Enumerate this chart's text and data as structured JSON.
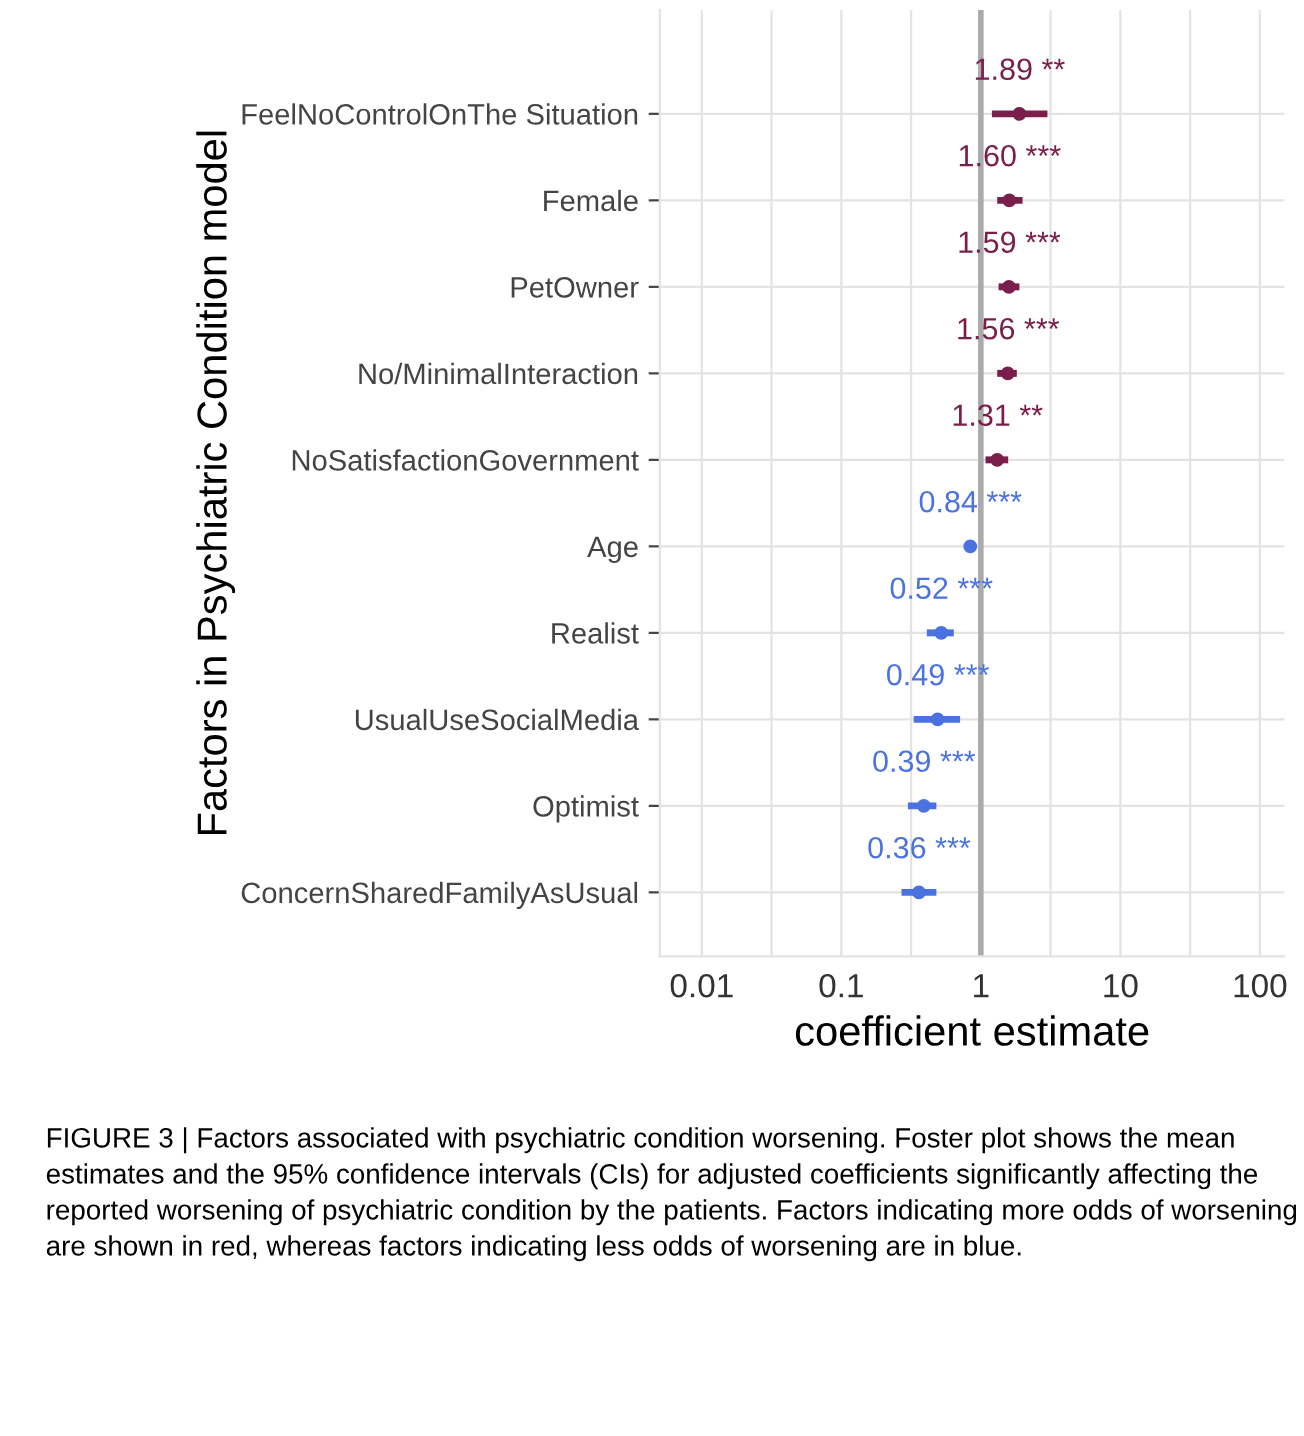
{
  "chart_data": {
    "type": "scatter",
    "orientation": "horizontal",
    "xlabel": "coefficient estimate",
    "ylabel": "Factors in Psychiatric Condition model",
    "categories": [
      "FeelNoControlOnThe Situation",
      "Female",
      "PetOwner",
      "No/MinimalInteraction",
      "NoSatisfactionGovernment",
      "Age",
      "Realist",
      "UsualUseSocialMedia",
      "Optimist",
      "ConcernSharedFamilyAsUsual"
    ],
    "values": [
      1.89,
      1.6,
      1.59,
      1.56,
      1.31,
      0.84,
      0.52,
      0.49,
      0.39,
      0.36
    ],
    "errors": [
      [
        1.2,
        3.0
      ],
      [
        1.31,
        1.99
      ],
      [
        1.34,
        1.89
      ],
      [
        1.31,
        1.81
      ],
      [
        1.08,
        1.57
      ],
      [
        0.8,
        0.88
      ],
      [
        0.41,
        0.64
      ],
      [
        0.33,
        0.71
      ],
      [
        0.3,
        0.48
      ],
      [
        0.27,
        0.48
      ]
    ],
    "colors": [
      "#7a1f4b",
      "#7a1f4b",
      "#7a1f4b",
      "#7a1f4b",
      "#7a1f4b",
      "#4a72e0",
      "#4a72e0",
      "#4a72e0",
      "#4a72e0",
      "#4a72e0"
    ],
    "value_labels": [
      "1.89 **",
      "1.60 ***",
      "1.59 ***",
      "1.56 ***",
      "1.31 **",
      "0.84 ***",
      "0.52 ***",
      "0.49 ***",
      "0.39 ***",
      "0.36 ***"
    ],
    "log": "x",
    "xlim": [
      0.005,
      150
    ],
    "xticks": [
      0.01,
      {
        "value": 0.0316,
        "label": null
      },
      0.1,
      {
        "value": 0.316,
        "label": null
      },
      1,
      {
        "value": 3.16,
        "label": null
      },
      10,
      {
        "value": 31.6,
        "label": null
      },
      100
    ],
    "grid": true,
    "marker": "circle",
    "ref_lines": [
      {
        "axis": "x",
        "value": 1,
        "color": "#aaaaaa"
      }
    ],
    "annotations": [
      "FIGURE 3 | Factors associated with psychiatric condition worsening. Foster plot shows the mean estimates and the 95% confidence intervals (CIs) for adjusted coefficients significantly affecting the reported worsening of psychiatric condition by the patients. Factors indicating more odds of worsening are shown in red, whereas factors indicating less odds of worsening are in blue."
    ]
  }
}
